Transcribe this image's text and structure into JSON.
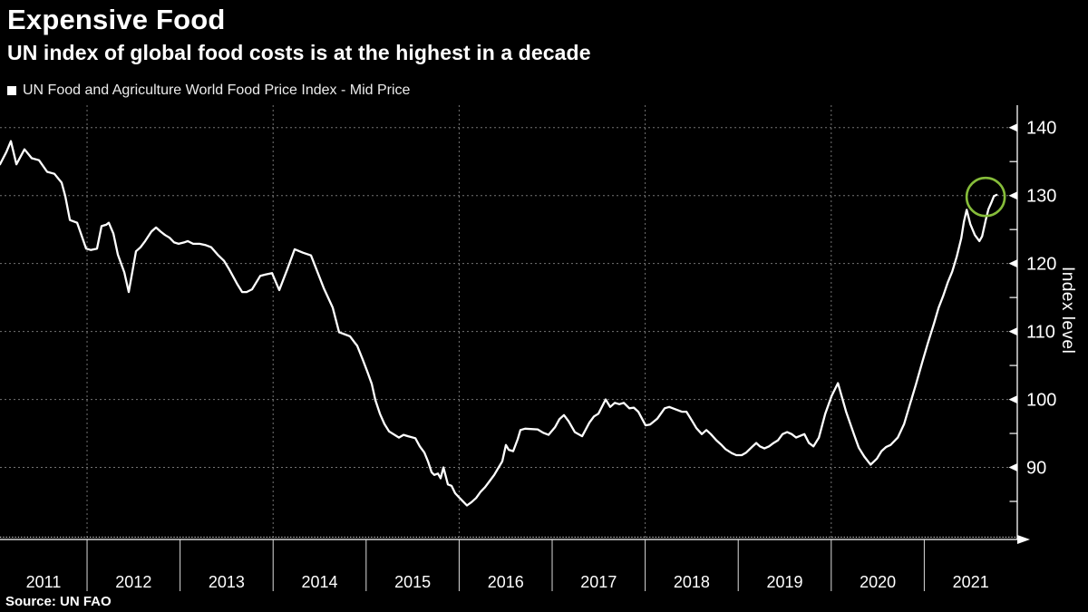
{
  "header": {
    "title": "Expensive Food",
    "subtitle": "UN index of global food costs is at the highest in a decade"
  },
  "legend": {
    "marker": "square-icon",
    "marker_color": "#ffffff",
    "label": "UN Food and Agriculture World Food Price Index - Mid Price"
  },
  "source": "Source: UN FAO",
  "colors": {
    "background": "#000000",
    "line": "#ffffff",
    "grid": "#9b9b9b",
    "annotation_green": "#86bd3a",
    "text": "#ffffff"
  },
  "chart_data": {
    "type": "line",
    "title": "Expensive Food",
    "subtitle": "UN index of global food costs is at the highest in a decade",
    "xlabel": "",
    "ylabel": "Index level",
    "legend_position": "top-left",
    "grid": "dashed",
    "x_tick_labels": [
      "2011",
      "2012",
      "2013",
      "2014",
      "2015",
      "2016",
      "2017",
      "2018",
      "2019",
      "2020",
      "2021"
    ],
    "x_gridline_years": [
      2012,
      2014,
      2016,
      2018,
      2020
    ],
    "x_separator_years": [
      2012,
      2013,
      2014,
      2015,
      2016,
      2017,
      2018,
      2019,
      2020,
      2021
    ],
    "y_ticks": [
      90,
      100,
      110,
      120,
      130,
      140
    ],
    "y_minor_ticks": [
      85,
      95,
      105,
      115,
      125,
      135
    ],
    "xlim": [
      2011.064,
      2022.0
    ],
    "ylim": [
      79.4,
      143.3
    ],
    "annotation": {
      "type": "circle",
      "x": 2021.66,
      "y": 129.8,
      "radius_px": 21,
      "color": "#86bd3a"
    },
    "series": [
      {
        "name": "UN Food and Agriculture World Food Price Index - Mid Price",
        "color": "#ffffff",
        "points": [
          [
            2011.064,
            134.6
          ],
          [
            2011.132,
            136.4
          ],
          [
            2011.181,
            138.0
          ],
          [
            2011.24,
            134.6
          ],
          [
            2011.327,
            136.8
          ],
          [
            2011.405,
            135.5
          ],
          [
            2011.483,
            135.2
          ],
          [
            2011.571,
            133.5
          ],
          [
            2011.649,
            133.2
          ],
          [
            2011.727,
            131.9
          ],
          [
            2011.766,
            129.9
          ],
          [
            2011.815,
            126.4
          ],
          [
            2011.893,
            126.0
          ],
          [
            2011.99,
            122.2
          ],
          [
            2012.039,
            122.0
          ],
          [
            2012.107,
            122.2
          ],
          [
            2012.156,
            125.5
          ],
          [
            2012.205,
            125.7
          ],
          [
            2012.234,
            126.0
          ],
          [
            2012.283,
            124.4
          ],
          [
            2012.331,
            121.3
          ],
          [
            2012.4,
            118.7
          ],
          [
            2012.448,
            115.8
          ],
          [
            2012.526,
            121.8
          ],
          [
            2012.575,
            122.4
          ],
          [
            2012.624,
            123.3
          ],
          [
            2012.692,
            124.7
          ],
          [
            2012.741,
            125.3
          ],
          [
            2012.79,
            124.7
          ],
          [
            2012.838,
            124.2
          ],
          [
            2012.887,
            123.8
          ],
          [
            2012.936,
            123.1
          ],
          [
            2012.984,
            122.9
          ],
          [
            2013.043,
            123.1
          ],
          [
            2013.082,
            123.3
          ],
          [
            2013.14,
            122.9
          ],
          [
            2013.209,
            122.9
          ],
          [
            2013.277,
            122.7
          ],
          [
            2013.335,
            122.4
          ],
          [
            2013.404,
            121.3
          ],
          [
            2013.472,
            120.4
          ],
          [
            2013.53,
            119.1
          ],
          [
            2013.618,
            116.9
          ],
          [
            2013.667,
            115.8
          ],
          [
            2013.715,
            115.8
          ],
          [
            2013.774,
            116.2
          ],
          [
            2013.862,
            118.2
          ],
          [
            2013.92,
            118.4
          ],
          [
            2013.988,
            118.6
          ],
          [
            2014.066,
            116.1
          ],
          [
            2014.154,
            119.2
          ],
          [
            2014.232,
            122.1
          ],
          [
            2014.32,
            121.6
          ],
          [
            2014.407,
            121.2
          ],
          [
            2014.544,
            116.4
          ],
          [
            2014.641,
            113.5
          ],
          [
            2014.709,
            109.9
          ],
          [
            2014.826,
            109.3
          ],
          [
            2014.875,
            108.4
          ],
          [
            2014.904,
            107.9
          ],
          [
            2014.963,
            105.9
          ],
          [
            2015.012,
            104.1
          ],
          [
            2015.06,
            102.3
          ],
          [
            2015.099,
            99.9
          ],
          [
            2015.148,
            97.9
          ],
          [
            2015.197,
            96.4
          ],
          [
            2015.246,
            95.3
          ],
          [
            2015.353,
            94.4
          ],
          [
            2015.402,
            94.8
          ],
          [
            2015.45,
            94.6
          ],
          [
            2015.529,
            94.3
          ],
          [
            2015.577,
            93.1
          ],
          [
            2015.626,
            92.2
          ],
          [
            2015.665,
            90.9
          ],
          [
            2015.704,
            89.3
          ],
          [
            2015.733,
            88.9
          ],
          [
            2015.772,
            89.1
          ],
          [
            2015.801,
            88.4
          ],
          [
            2015.831,
            90.0
          ],
          [
            2015.879,
            87.5
          ],
          [
            2015.918,
            87.3
          ],
          [
            2015.957,
            86.2
          ],
          [
            2016.006,
            85.5
          ],
          [
            2016.084,
            84.4
          ],
          [
            2016.133,
            84.9
          ],
          [
            2016.182,
            85.5
          ],
          [
            2016.23,
            86.4
          ],
          [
            2016.279,
            87.1
          ],
          [
            2016.328,
            88.0
          ],
          [
            2016.377,
            88.9
          ],
          [
            2016.425,
            90.0
          ],
          [
            2016.464,
            90.9
          ],
          [
            2016.503,
            93.3
          ],
          [
            2016.533,
            92.6
          ],
          [
            2016.581,
            92.4
          ],
          [
            2016.63,
            94.2
          ],
          [
            2016.659,
            95.5
          ],
          [
            2016.708,
            95.7
          ],
          [
            2016.844,
            95.6
          ],
          [
            2016.903,
            95.1
          ],
          [
            2016.961,
            94.8
          ],
          [
            2017.03,
            95.9
          ],
          [
            2017.078,
            97.1
          ],
          [
            2017.127,
            97.7
          ],
          [
            2017.176,
            96.8
          ],
          [
            2017.244,
            95.2
          ],
          [
            2017.322,
            94.6
          ],
          [
            2017.4,
            96.6
          ],
          [
            2017.449,
            97.5
          ],
          [
            2017.497,
            97.9
          ],
          [
            2017.575,
            100.0
          ],
          [
            2017.624,
            98.9
          ],
          [
            2017.673,
            99.5
          ],
          [
            2017.722,
            99.3
          ],
          [
            2017.77,
            99.5
          ],
          [
            2017.829,
            98.7
          ],
          [
            2017.878,
            98.8
          ],
          [
            2017.926,
            98.2
          ],
          [
            2018.004,
            96.2
          ],
          [
            2018.053,
            96.3
          ],
          [
            2018.131,
            97.2
          ],
          [
            2018.209,
            98.7
          ],
          [
            2018.258,
            98.9
          ],
          [
            2018.316,
            98.6
          ],
          [
            2018.394,
            98.2
          ],
          [
            2018.443,
            98.2
          ],
          [
            2018.502,
            96.9
          ],
          [
            2018.55,
            95.8
          ],
          [
            2018.609,
            94.9
          ],
          [
            2018.658,
            95.5
          ],
          [
            2018.706,
            94.9
          ],
          [
            2018.765,
            94.0
          ],
          [
            2018.814,
            93.4
          ],
          [
            2018.862,
            92.7
          ],
          [
            2018.931,
            92.1
          ],
          [
            2018.979,
            91.8
          ],
          [
            2019.038,
            91.8
          ],
          [
            2019.087,
            92.2
          ],
          [
            2019.155,
            93.1
          ],
          [
            2019.194,
            93.6
          ],
          [
            2019.233,
            93.1
          ],
          [
            2019.282,
            92.8
          ],
          [
            2019.331,
            93.1
          ],
          [
            2019.38,
            93.6
          ],
          [
            2019.428,
            94.0
          ],
          [
            2019.477,
            94.9
          ],
          [
            2019.526,
            95.2
          ],
          [
            2019.575,
            94.9
          ],
          [
            2019.623,
            94.4
          ],
          [
            2019.711,
            94.9
          ],
          [
            2019.76,
            93.6
          ],
          [
            2019.809,
            93.1
          ],
          [
            2019.867,
            94.4
          ],
          [
            2019.936,
            97.9
          ],
          [
            2020.004,
            100.5
          ],
          [
            2020.072,
            102.4
          ],
          [
            2020.16,
            98.2
          ],
          [
            2020.248,
            94.7
          ],
          [
            2020.296,
            92.9
          ],
          [
            2020.355,
            91.6
          ],
          [
            2020.423,
            90.4
          ],
          [
            2020.491,
            91.3
          ],
          [
            2020.54,
            92.4
          ],
          [
            2020.589,
            93.0
          ],
          [
            2020.637,
            93.3
          ],
          [
            2020.715,
            94.4
          ],
          [
            2020.784,
            96.4
          ],
          [
            2020.842,
            99.1
          ],
          [
            2020.91,
            102.2
          ],
          [
            2020.979,
            105.5
          ],
          [
            2021.037,
            108.2
          ],
          [
            2021.105,
            111.2
          ],
          [
            2021.154,
            113.5
          ],
          [
            2021.203,
            115.2
          ],
          [
            2021.252,
            117.2
          ],
          [
            2021.3,
            118.8
          ],
          [
            2021.349,
            121.0
          ],
          [
            2021.398,
            123.7
          ],
          [
            2021.427,
            126.2
          ],
          [
            2021.456,
            127.9
          ],
          [
            2021.495,
            125.8
          ],
          [
            2021.544,
            124.2
          ],
          [
            2021.593,
            123.3
          ],
          [
            2021.622,
            124.0
          ],
          [
            2021.661,
            126.4
          ],
          [
            2021.69,
            128.0
          ],
          [
            2021.719,
            128.9
          ],
          [
            2021.749,
            129.9
          ],
          [
            2021.778,
            130.1
          ]
        ]
      }
    ]
  }
}
